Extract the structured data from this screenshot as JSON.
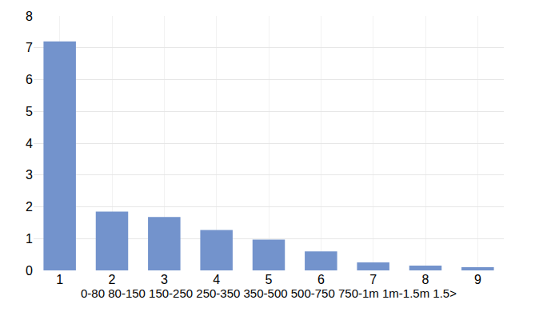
{
  "chart_data": {
    "type": "bar",
    "categories": [
      "1",
      "2",
      "3",
      "4",
      "5",
      "6",
      "7",
      "8",
      "9"
    ],
    "values": [
      7.2,
      1.85,
      1.68,
      1.27,
      0.97,
      0.6,
      0.25,
      0.15,
      0.1
    ],
    "x_label": "0-80 80-150 150-250 250-350 350-500 500-750 750-1m 1m-1.5m 1.5>",
    "color": "#7393cc",
    "ylim": [
      0,
      8
    ],
    "yticks": [
      0,
      1,
      2,
      3,
      4,
      5,
      6,
      7,
      8
    ],
    "grid": true
  }
}
